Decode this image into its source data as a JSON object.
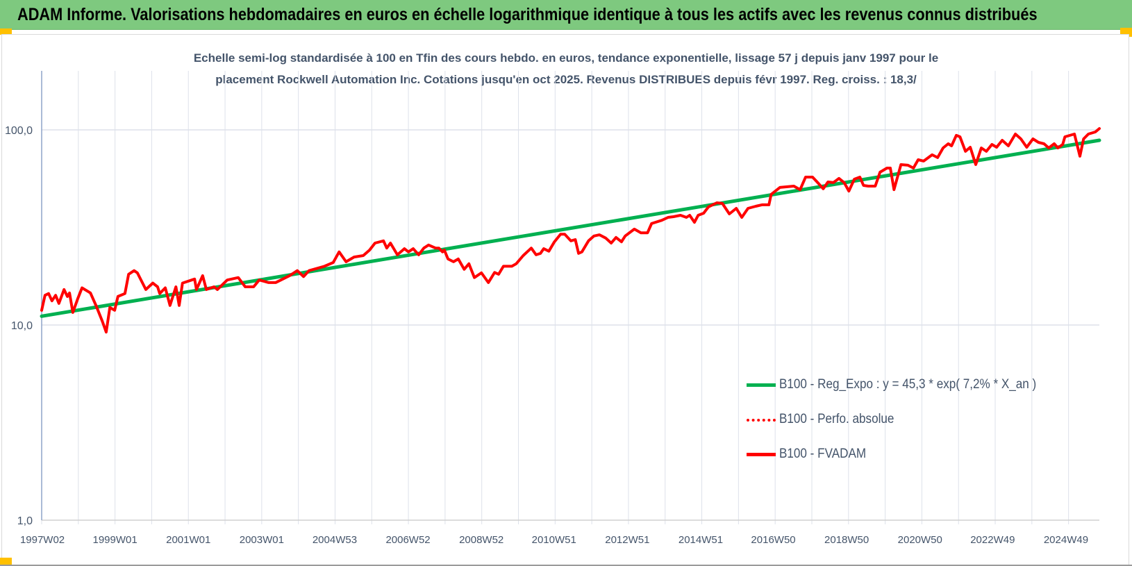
{
  "header": {
    "title": "ADAM Informe. Valorisations hebdomadaires en euros en échelle logarithmique identique à tous les actifs avec les revenus connus distribués"
  },
  "chart_data": {
    "type": "line",
    "title_lines": [
      "Echelle semi-log standardisée à 100 en Tfin des cours hebdo. en euros, tendance exponentielle, lissage 57 j depuis janv 1997 pour le",
      "placement Rockwell Automation Inc.  Cotations jusqu'en oct 2025. Revenus DISTRIBUES depuis févr 1997. Reg. croiss. : 18,3/"
    ],
    "y_scale": "log",
    "ylim": [
      1,
      200
    ],
    "xlim": [
      1997.0,
      2025.84
    ],
    "grid": true,
    "y_ticks": [
      {
        "value": 1,
        "label": "1,0"
      },
      {
        "value": 10,
        "label": "10,0"
      },
      {
        "value": 100,
        "label": "100,0"
      }
    ],
    "x_ticks": [
      {
        "year": 1997.02,
        "label": "1997W02"
      },
      {
        "year": 1999.0,
        "label": "1999W01"
      },
      {
        "year": 2001.0,
        "label": "2001W01"
      },
      {
        "year": 2003.0,
        "label": "2003W01"
      },
      {
        "year": 2004.99,
        "label": "2004W53"
      },
      {
        "year": 2006.99,
        "label": "2006W52"
      },
      {
        "year": 2008.99,
        "label": "2008W52"
      },
      {
        "year": 2010.97,
        "label": "2010W51"
      },
      {
        "year": 2012.97,
        "label": "2012W51"
      },
      {
        "year": 2014.97,
        "label": "2014W51"
      },
      {
        "year": 2016.95,
        "label": "2016W50"
      },
      {
        "year": 2018.95,
        "label": "2018W50"
      },
      {
        "year": 2020.95,
        "label": "2020W50"
      },
      {
        "year": 2022.93,
        "label": "2022W49"
      },
      {
        "year": 2024.93,
        "label": "2024W49"
      }
    ],
    "legend_position": "right",
    "series": [
      {
        "name": "B100 - Reg_Expo : y = 45,3 * exp( 7,2% *  X_an )",
        "color": "#00b050",
        "style": "solid",
        "points": [
          [
            1997.0,
            11.1
          ],
          [
            2025.84,
            88.4
          ]
        ]
      },
      {
        "name": "B100 - Perfo. absolue",
        "color": "#ff0000",
        "style": "dotted",
        "points": []
      },
      {
        "name": "B100 - FVADAM",
        "color": "#ff0000",
        "style": "solid",
        "points": [
          [
            1997.0,
            11.9
          ],
          [
            1997.09,
            14.2
          ],
          [
            1997.19,
            14.5
          ],
          [
            1997.28,
            13.3
          ],
          [
            1997.38,
            14.2
          ],
          [
            1997.47,
            12.9
          ],
          [
            1997.61,
            15.2
          ],
          [
            1997.7,
            14.0
          ],
          [
            1997.76,
            14.6
          ],
          [
            1997.85,
            11.6
          ],
          [
            1997.98,
            13.6
          ],
          [
            1998.1,
            15.5
          ],
          [
            1998.33,
            14.6
          ],
          [
            1998.48,
            12.6
          ],
          [
            1998.65,
            10.5
          ],
          [
            1998.76,
            9.2
          ],
          [
            1998.86,
            12.3
          ],
          [
            1998.99,
            11.9
          ],
          [
            1999.08,
            14.0
          ],
          [
            1999.27,
            14.5
          ],
          [
            1999.37,
            18.2
          ],
          [
            1999.52,
            19.0
          ],
          [
            1999.61,
            18.5
          ],
          [
            1999.84,
            15.2
          ],
          [
            2000.03,
            16.4
          ],
          [
            2000.16,
            15.7
          ],
          [
            2000.22,
            14.5
          ],
          [
            2000.37,
            15.5
          ],
          [
            2000.5,
            12.6
          ],
          [
            2000.66,
            15.7
          ],
          [
            2000.75,
            12.6
          ],
          [
            2000.84,
            16.4
          ],
          [
            2001.17,
            17.2
          ],
          [
            2001.22,
            15.2
          ],
          [
            2001.39,
            17.9
          ],
          [
            2001.49,
            15.2
          ],
          [
            2001.7,
            15.7
          ],
          [
            2001.79,
            15.2
          ],
          [
            2002.06,
            17.0
          ],
          [
            2002.36,
            17.5
          ],
          [
            2002.55,
            15.7
          ],
          [
            2002.78,
            15.7
          ],
          [
            2002.93,
            17.0
          ],
          [
            2003.19,
            16.5
          ],
          [
            2003.38,
            16.5
          ],
          [
            2003.76,
            17.9
          ],
          [
            2003.97,
            19.0
          ],
          [
            2004.14,
            17.7
          ],
          [
            2004.29,
            19.0
          ],
          [
            2004.71,
            20.0
          ],
          [
            2004.95,
            20.9
          ],
          [
            2005.11,
            23.7
          ],
          [
            2005.3,
            21.1
          ],
          [
            2005.52,
            22.3
          ],
          [
            2005.77,
            22.7
          ],
          [
            2005.94,
            24.2
          ],
          [
            2006.09,
            26.3
          ],
          [
            2006.32,
            27.0
          ],
          [
            2006.41,
            24.8
          ],
          [
            2006.51,
            26.3
          ],
          [
            2006.7,
            22.9
          ],
          [
            2006.89,
            24.6
          ],
          [
            2007.0,
            23.7
          ],
          [
            2007.13,
            24.6
          ],
          [
            2007.28,
            22.9
          ],
          [
            2007.42,
            24.8
          ],
          [
            2007.55,
            25.7
          ],
          [
            2007.74,
            24.8
          ],
          [
            2007.83,
            24.8
          ],
          [
            2007.93,
            23.7
          ],
          [
            2007.98,
            24.2
          ],
          [
            2008.08,
            21.8
          ],
          [
            2008.23,
            21.1
          ],
          [
            2008.36,
            21.8
          ],
          [
            2008.52,
            19.3
          ],
          [
            2008.65,
            20.6
          ],
          [
            2008.8,
            17.5
          ],
          [
            2008.99,
            18.5
          ],
          [
            2009.18,
            16.5
          ],
          [
            2009.35,
            18.6
          ],
          [
            2009.46,
            18.2
          ],
          [
            2009.59,
            20.0
          ],
          [
            2009.82,
            20.0
          ],
          [
            2009.94,
            20.6
          ],
          [
            2010.13,
            22.7
          ],
          [
            2010.35,
            24.8
          ],
          [
            2010.48,
            22.9
          ],
          [
            2010.6,
            23.3
          ],
          [
            2010.69,
            24.6
          ],
          [
            2010.83,
            23.9
          ],
          [
            2010.98,
            26.7
          ],
          [
            2011.15,
            29.2
          ],
          [
            2011.26,
            29.2
          ],
          [
            2011.43,
            27.0
          ],
          [
            2011.55,
            27.4
          ],
          [
            2011.64,
            23.3
          ],
          [
            2011.73,
            23.7
          ],
          [
            2011.91,
            27.0
          ],
          [
            2012.06,
            28.6
          ],
          [
            2012.21,
            29.0
          ],
          [
            2012.38,
            27.9
          ],
          [
            2012.53,
            26.3
          ],
          [
            2012.66,
            28.1
          ],
          [
            2012.81,
            26.7
          ],
          [
            2012.91,
            28.6
          ],
          [
            2013.16,
            31.0
          ],
          [
            2013.34,
            29.7
          ],
          [
            2013.52,
            29.7
          ],
          [
            2013.63,
            33.1
          ],
          [
            2013.91,
            34.4
          ],
          [
            2014.08,
            35.6
          ],
          [
            2014.23,
            35.9
          ],
          [
            2014.42,
            36.5
          ],
          [
            2014.58,
            35.6
          ],
          [
            2014.67,
            36.5
          ],
          [
            2014.8,
            33.6
          ],
          [
            2014.9,
            36.5
          ],
          [
            2015.05,
            37.4
          ],
          [
            2015.18,
            40.3
          ],
          [
            2015.41,
            42.3
          ],
          [
            2015.56,
            42.0
          ],
          [
            2015.75,
            37.1
          ],
          [
            2015.94,
            39.6
          ],
          [
            2016.09,
            35.6
          ],
          [
            2016.26,
            39.6
          ],
          [
            2016.47,
            40.6
          ],
          [
            2016.64,
            41.3
          ],
          [
            2016.83,
            41.3
          ],
          [
            2016.89,
            46.7
          ],
          [
            2017.13,
            50.7
          ],
          [
            2017.51,
            51.5
          ],
          [
            2017.68,
            49.4
          ],
          [
            2017.83,
            57.3
          ],
          [
            2018.02,
            57.3
          ],
          [
            2018.16,
            53.7
          ],
          [
            2018.31,
            49.9
          ],
          [
            2018.44,
            54.1
          ],
          [
            2018.59,
            53.7
          ],
          [
            2018.74,
            56.4
          ],
          [
            2018.88,
            53.7
          ],
          [
            2019.01,
            48.6
          ],
          [
            2019.16,
            55.9
          ],
          [
            2019.31,
            57.3
          ],
          [
            2019.41,
            51.9
          ],
          [
            2019.54,
            51.5
          ],
          [
            2019.73,
            51.5
          ],
          [
            2019.86,
            60.7
          ],
          [
            2020.05,
            63.7
          ],
          [
            2020.14,
            63.7
          ],
          [
            2020.24,
            49.4
          ],
          [
            2020.43,
            66.4
          ],
          [
            2020.62,
            65.9
          ],
          [
            2020.77,
            63.7
          ],
          [
            2020.9,
            70.3
          ],
          [
            2021.05,
            69.2
          ],
          [
            2021.28,
            74.5
          ],
          [
            2021.43,
            72.1
          ],
          [
            2021.58,
            80.8
          ],
          [
            2021.72,
            84.9
          ],
          [
            2021.81,
            82.8
          ],
          [
            2021.94,
            93.7
          ],
          [
            2022.04,
            92.1
          ],
          [
            2022.19,
            77.6
          ],
          [
            2022.32,
            81.5
          ],
          [
            2022.47,
            66.4
          ],
          [
            2022.62,
            80.8
          ],
          [
            2022.76,
            77.6
          ],
          [
            2022.91,
            84.2
          ],
          [
            2023.04,
            81.5
          ],
          [
            2023.19,
            88.4
          ],
          [
            2023.36,
            82.8
          ],
          [
            2023.55,
            95.2
          ],
          [
            2023.7,
            89.9
          ],
          [
            2023.86,
            81.5
          ],
          [
            2024.03,
            89.9
          ],
          [
            2024.18,
            86.3
          ],
          [
            2024.33,
            84.9
          ],
          [
            2024.46,
            80.8
          ],
          [
            2024.61,
            84.9
          ],
          [
            2024.71,
            80.8
          ],
          [
            2024.84,
            84.2
          ],
          [
            2024.9,
            92.1
          ],
          [
            2025.16,
            95.2
          ],
          [
            2025.31,
            73.3
          ],
          [
            2025.41,
            89.9
          ],
          [
            2025.54,
            95.2
          ],
          [
            2025.73,
            97.6
          ],
          [
            2025.84,
            101.6
          ]
        ]
      }
    ]
  },
  "legend": {
    "items": [
      {
        "label": "B100 - Reg_Expo : y = 45,3 * exp( 7,2% *  X_an )",
        "color": "#00b050"
      },
      {
        "label": "B100 - Perfo. absolue",
        "color": "#ff0000"
      },
      {
        "label": "B100 - FVADAM",
        "color": "#ff0000"
      }
    ]
  },
  "colors": {
    "header_bg": "#7ec97f",
    "accent_marks": "#ffc000",
    "text": "#44546a"
  }
}
